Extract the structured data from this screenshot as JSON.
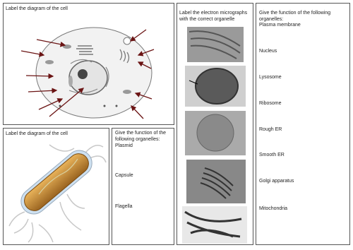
{
  "cell_panel": {
    "title": "Label the diagram of the cell"
  },
  "bacteria_panel": {
    "title": "Label the diagram of the cell"
  },
  "bacteria_functions": {
    "prompt": "Give the function of the following organelles:",
    "items": [
      "Plasmid",
      "Capsule",
      "Flagella"
    ]
  },
  "micrographs": {
    "title": "Label the electron micrographs with the correct organelle"
  },
  "functions": {
    "prompt": "Give the function of the following organelles:",
    "items": [
      "Plasma membrane",
      "Nucleus",
      "Lysosome",
      "Ribosome",
      "Rough ER",
      "Smooth ER",
      "Golgi apparatus",
      "Mitochondria"
    ]
  }
}
